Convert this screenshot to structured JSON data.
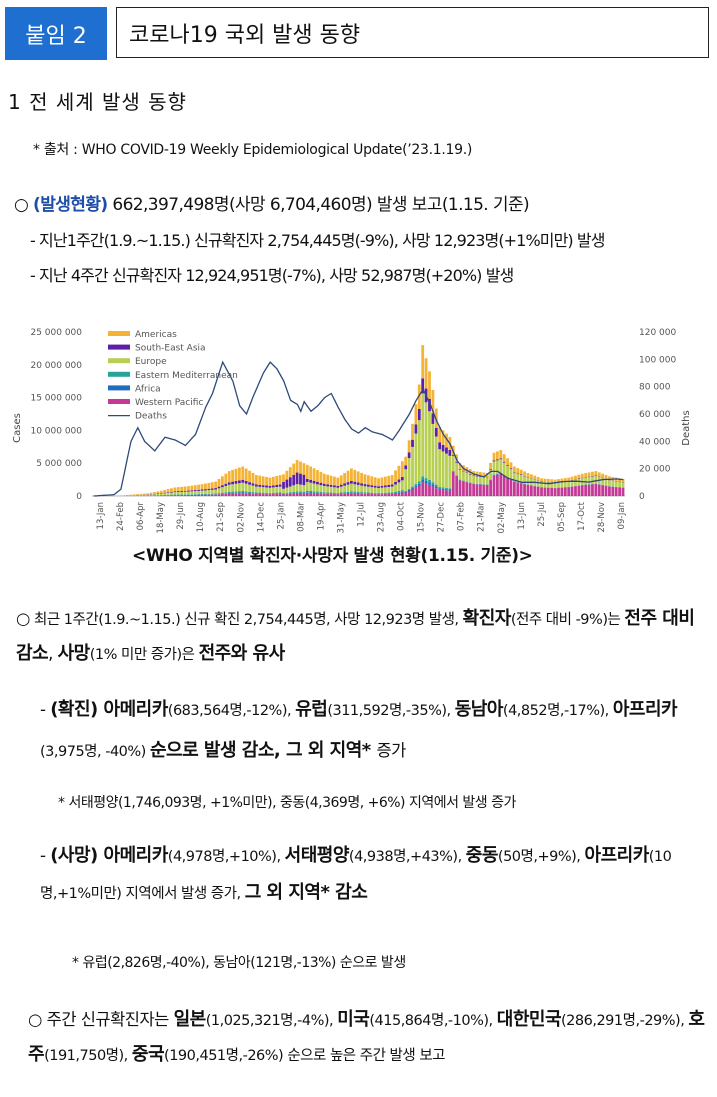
{
  "header": {
    "badge": "붙임 2",
    "title": "코로나19 국외 발생 동향"
  },
  "section1": {
    "title": "1  전 세계 발생 동향"
  },
  "source_note": "* 출처 : WHO COVID-19 Weekly Epidemiological Update(’23.1.19.)",
  "overview": {
    "bullet": "○",
    "label": "(발생현황)",
    "text": " 662,397,498명(사망 6,704,460명) 발생 보고(1.15. 기준)"
  },
  "sub1": "- 지난1주간(1.9.~1.15.) 신규확진자 2,754,445명(-9%), 사망 12,923명(+1%미만) 발생",
  "sub2": "- 지난 4주간 신규확진자 12,924,951명(-7%), 사망 52,987명(+20%) 발생",
  "chart_data": {
    "type": "bar",
    "title": "",
    "ylabel": "Cases",
    "y2label": "Deaths",
    "ylim": [
      0,
      25000000
    ],
    "y2lim": [
      0,
      120000
    ],
    "yticks": [
      "25 000 000",
      "20 000 000",
      "15 000 000",
      "10 000 000",
      "5 000 000",
      "0"
    ],
    "y2ticks": [
      "120 000",
      "100 000",
      "80 000",
      "60 000",
      "40 000",
      "20 000",
      "0"
    ],
    "categories": [
      "13-Jan",
      "24-Feb",
      "06-Apr",
      "18-May",
      "29-Jun",
      "10-Aug",
      "21-Sep",
      "02-Nov",
      "14-Dec",
      "25-Jan",
      "08-Mar",
      "19-Apr",
      "31-May",
      "12-Jul",
      "23-Aug",
      "04-Oct",
      "15-Nov",
      "27-Dec",
      "07-Feb",
      "21-Mar",
      "02-May",
      "13-Jun",
      "25-Jul",
      "05-Sep",
      "17-Oct",
      "28-Nov",
      "09-Jan"
    ],
    "legend": [
      "Americas",
      "South-East Asia",
      "Europe",
      "Eastern Mediterranean",
      "Africa",
      "Western Pacific",
      "Deaths"
    ],
    "legend_position": "top-left",
    "colors": {
      "Americas": "#f5b335",
      "South-East Asia": "#5b1fa8",
      "Europe": "#b8cf54",
      "Eastern Mediterranean": "#27a39a",
      "Africa": "#1f6fc0",
      "Western Pacific": "#c53996",
      "Deaths": "#2e4a78"
    },
    "weeks": 157,
    "totals_anchor": [
      [
        0,
        0.01
      ],
      [
        8,
        0.05
      ],
      [
        11,
        0.2
      ],
      [
        16,
        0.4
      ],
      [
        20,
        0.8
      ],
      [
        24,
        1.3
      ],
      [
        28,
        1.5
      ],
      [
        32,
        1.8
      ],
      [
        36,
        2.2
      ],
      [
        40,
        3.8
      ],
      [
        44,
        4.5
      ],
      [
        48,
        3.2
      ],
      [
        52,
        2.8
      ],
      [
        56,
        3.3
      ],
      [
        60,
        5.5
      ],
      [
        64,
        4.5
      ],
      [
        68,
        3.4
      ],
      [
        72,
        2.8
      ],
      [
        76,
        4.2
      ],
      [
        80,
        3.3
      ],
      [
        84,
        2.7
      ],
      [
        88,
        3.2
      ],
      [
        92,
        6.0
      ],
      [
        94,
        11.0
      ],
      [
        96,
        17.0
      ],
      [
        97,
        23.0
      ],
      [
        99,
        19.0
      ],
      [
        102,
        10.5
      ],
      [
        105,
        9.0
      ],
      [
        108,
        5.0
      ],
      [
        112,
        3.8
      ],
      [
        116,
        3.5
      ],
      [
        118,
        6.6
      ],
      [
        120,
        7.0
      ],
      [
        124,
        4.5
      ],
      [
        128,
        3.5
      ],
      [
        132,
        2.7
      ],
      [
        136,
        2.5
      ],
      [
        140,
        2.8
      ],
      [
        144,
        3.4
      ],
      [
        148,
        3.8
      ],
      [
        152,
        3.0
      ],
      [
        156,
        2.6
      ]
    ],
    "deaths_anchor": [
      [
        0,
        0
      ],
      [
        6,
        1000
      ],
      [
        8,
        5000
      ],
      [
        11,
        40000
      ],
      [
        13,
        50000
      ],
      [
        15,
        40000
      ],
      [
        18,
        33000
      ],
      [
        21,
        43000
      ],
      [
        24,
        41000
      ],
      [
        27,
        37000
      ],
      [
        30,
        45000
      ],
      [
        33,
        65000
      ],
      [
        35,
        75000
      ],
      [
        38,
        98000
      ],
      [
        41,
        84000
      ],
      [
        43,
        66000
      ],
      [
        45,
        60000
      ],
      [
        47,
        73000
      ],
      [
        50,
        90000
      ],
      [
        52,
        98000
      ],
      [
        54,
        93000
      ],
      [
        56,
        84000
      ],
      [
        58,
        70000
      ],
      [
        60,
        67000
      ],
      [
        61,
        62000
      ],
      [
        62,
        69000
      ],
      [
        64,
        62000
      ],
      [
        66,
        66000
      ],
      [
        68,
        72000
      ],
      [
        70,
        75000
      ],
      [
        72,
        65000
      ],
      [
        74,
        56000
      ],
      [
        76,
        49000
      ],
      [
        78,
        46000
      ],
      [
        80,
        50000
      ],
      [
        82,
        47000
      ],
      [
        85,
        45000
      ],
      [
        88,
        41000
      ],
      [
        90,
        48000
      ],
      [
        93,
        60000
      ],
      [
        95,
        70000
      ],
      [
        97,
        78000
      ],
      [
        99,
        68000
      ],
      [
        101,
        55000
      ],
      [
        103,
        45000
      ],
      [
        105,
        38000
      ],
      [
        107,
        26000
      ],
      [
        109,
        20000
      ],
      [
        112,
        16000
      ],
      [
        115,
        14000
      ],
      [
        117,
        18000
      ],
      [
        119,
        18000
      ],
      [
        122,
        13000
      ],
      [
        126,
        10000
      ],
      [
        130,
        10000
      ],
      [
        134,
        9000
      ],
      [
        138,
        10500
      ],
      [
        142,
        10800
      ],
      [
        146,
        10200
      ],
      [
        150,
        12000
      ],
      [
        154,
        12500
      ],
      [
        156,
        12000
      ]
    ]
  },
  "chart_caption": "<WHO 지역별 확진자·사망자 발생 현황(1.15. 기준)>",
  "p2": {
    "bullet": "○",
    "t1": " 최근 1주간(1.9.~1.15.) 신규 확진 2,754,445명, 사망 12,923명 발생, ",
    "b1": "확진자",
    "t2": "(전주 대비 -9%)는 ",
    "b2": "전주 대비 감소",
    "t3": ", ",
    "b3": "사망",
    "t4": "(1% 미만 증가)은 ",
    "b4": "전주와 유사"
  },
  "p3": {
    "lead": "- ",
    "b1": "(확진) 아메리카",
    "t1": "(683,564명,-12%), ",
    "b2": "유럽",
    "t2": "(311,592명,-35%), ",
    "b3": "동남아",
    "t3": "(4,852명,-17%), ",
    "b4": "아프리카",
    "t4": "(3,975명, -40%) ",
    "b5": "순으로 발생 감소, 그 외 지역* ",
    "t5": "증가"
  },
  "note1": "* 서태평양(1,746,093명, +1%미만), 중동(4,369명, +6%) 지역에서 발생 증가",
  "p4": {
    "lead": "- ",
    "b1": "(사망) 아메리카",
    "t1": "(4,978명,+10%), ",
    "b2": "서태평양",
    "t2": "(4,938명,+43%), ",
    "b3": "중동",
    "t3": "(50명,+9%), ",
    "b4": "아프리카",
    "t4": "(10명,+1%미만) 지역에서 발생 증가, ",
    "b5": "그 외 지역* 감소"
  },
  "note2": "* 유럽(2,826명,-40%), 동남아(121명,-13%) 순으로 발생",
  "p5": {
    "bullet": "○",
    "t1": " 주간 신규확진자는 ",
    "b1": "일본",
    "t2": "(1,025,321명,-4%), ",
    "b2": "미국",
    "t3": "(415,864명,-10%), ",
    "b3": "대한민국",
    "t4": "(286,291명,-29%), ",
    "b4": "호주",
    "t5": "(191,750명), ",
    "b5": "중국",
    "t6": "(190,451명,-26%) 순으로 높은 주간 발생 보고"
  }
}
